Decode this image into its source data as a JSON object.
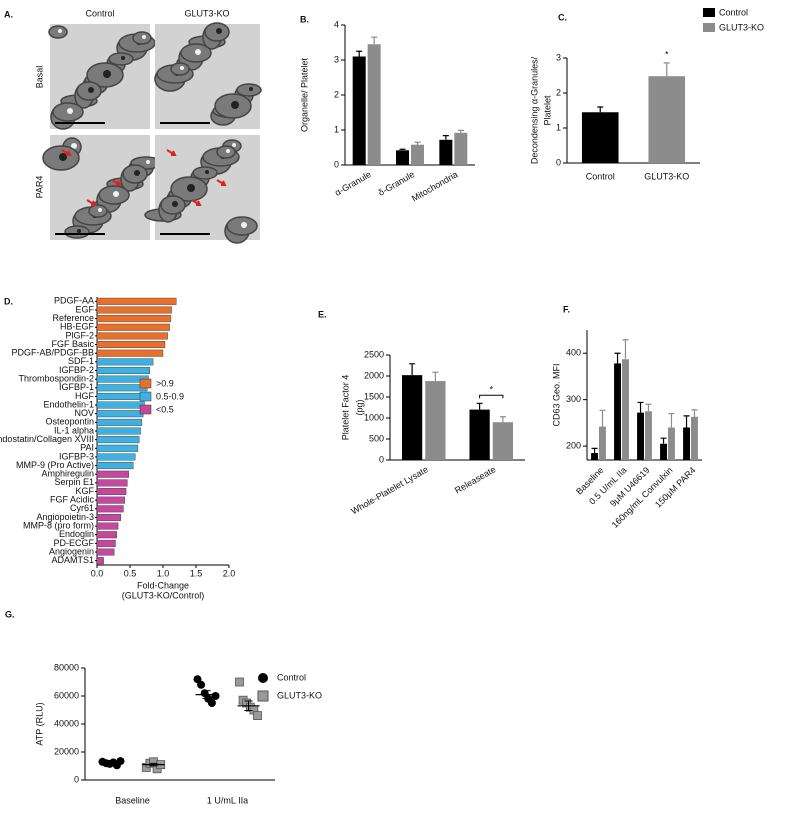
{
  "panel_a": {
    "label": "A.",
    "columns": [
      "Control",
      "GLUT3-KO"
    ],
    "rows": [
      "Basal",
      "PAR4"
    ]
  },
  "chart_data": [
    {
      "type": "bar",
      "panel": "B.",
      "ylabel": "Organelle/ Platelet",
      "categories": [
        "α-Granule",
        "δ-Granule",
        "Mitochondria"
      ],
      "series": [
        {
          "color": "#000000",
          "values": [
            3.1,
            0.42,
            0.72
          ],
          "errors": [
            0.15,
            0.03,
            0.12
          ]
        },
        {
          "color": "#8c8c8c",
          "values": [
            3.45,
            0.58,
            0.92
          ],
          "errors": [
            0.2,
            0.07,
            0.07
          ]
        }
      ],
      "ylim": [
        0,
        4
      ],
      "yticks": [
        0,
        1,
        2,
        3,
        4
      ]
    },
    {
      "type": "bar",
      "panel": "C.",
      "ylabel": [
        "Decondensing α-Granules/",
        "Platelet"
      ],
      "categories": [
        "Control",
        "GLUT3-KO"
      ],
      "values": [
        1.45,
        2.48
      ],
      "errors": [
        0.15,
        0.38
      ],
      "colors": [
        "#000000",
        "#8c8c8c"
      ],
      "ylim": [
        0,
        3
      ],
      "yticks": [
        0,
        1,
        2,
        3
      ],
      "annotations": [
        {
          "text": "*",
          "category": 1
        }
      ],
      "legend": [
        {
          "name": "Control",
          "color": "#000000"
        },
        {
          "name": "GLUT3-KO",
          "color": "#8c8c8c"
        }
      ]
    },
    {
      "type": "hbar",
      "panel": "D.",
      "xlabel": [
        "Fold-Change",
        "(GLUT3-KO/Control)"
      ],
      "xlim": [
        0,
        2
      ],
      "xticks": [
        {
          "value": 0,
          "label": "0.0"
        },
        0.5,
        {
          "value": 1,
          "label": "1.0"
        },
        1.5,
        {
          "value": 2,
          "label": "2.0"
        }
      ],
      "groups": [
        {
          "name": ">0.9",
          "color": "#e8702a",
          "categories": [
            "PDGF-AA",
            "EGF",
            "Reference",
            "HB-EGF",
            "PlGF-2",
            "FGF Basic",
            "PDGF-AB/PDGF-BB"
          ],
          "values": [
            1.2,
            1.13,
            1.12,
            1.1,
            1.07,
            1.03,
            1.0
          ]
        },
        {
          "name": "0.5-0.9",
          "color": "#3fb0e0",
          "categories": [
            "SDF-1",
            "IGFBP-2",
            "Thrombospondin-2",
            "IGFBP-1",
            "HGF",
            "Endothelin-1",
            "NOV",
            "Osteopontin",
            "IL-1 alpha",
            "Endostatin/Collagen XVIII",
            "PAI",
            "IGFBP-3",
            "MMP-9 (Pro Active)"
          ],
          "values": [
            0.85,
            0.8,
            0.78,
            0.76,
            0.74,
            0.72,
            0.7,
            0.68,
            0.66,
            0.64,
            0.62,
            0.58,
            0.55
          ]
        },
        {
          "name": "<0.5",
          "color": "#c4499c",
          "categories": [
            "Amphiregulin",
            "Serpin E1",
            "KGF",
            "FGF Acidic",
            "Cyr61",
            "Angiopoietin-3",
            "MMP-8 (pro form)",
            "Endoglin",
            "PD-ECGF",
            "Angiogenin",
            "ADAMTS1"
          ],
          "values": [
            0.48,
            0.46,
            0.44,
            0.42,
            0.4,
            0.36,
            0.32,
            0.3,
            0.28,
            0.26,
            0.1
          ]
        }
      ]
    },
    {
      "type": "bar",
      "panel": "E.",
      "ylabel": [
        "Platelet Factor 4",
        "(pg)"
      ],
      "categories": [
        "Whole-Platelet Lysate",
        "Releaseate"
      ],
      "series": [
        {
          "color": "#000000",
          "values": [
            2020,
            1200
          ],
          "errors": [
            270,
            150
          ]
        },
        {
          "color": "#8c8c8c",
          "values": [
            1880,
            900
          ],
          "errors": [
            210,
            130
          ]
        }
      ],
      "ylim": [
        0,
        2500
      ],
      "yticks": [
        0,
        500,
        1000,
        1500,
        2000,
        2500
      ],
      "annotations": [
        {
          "text": "*",
          "category": 1,
          "bracket": true
        }
      ]
    },
    {
      "type": "bar",
      "panel": "F.",
      "ylabel": "CD63 Geo. MFI",
      "categories": [
        "Baseline",
        "0.5 U/mL IIa",
        "9μM U46619",
        "160ng/mL Convulxin",
        "150μM PAR4"
      ],
      "series": [
        {
          "color": "#000000",
          "values": [
            185,
            378,
            272,
            205,
            240
          ],
          "errors": [
            10,
            22,
            22,
            12,
            25
          ]
        },
        {
          "color": "#8c8c8c",
          "values": [
            242,
            387,
            275,
            240,
            263
          ],
          "errors": [
            35,
            42,
            15,
            30,
            15
          ]
        }
      ],
      "ylim": [
        170,
        450
      ],
      "yticks": [
        200,
        300,
        400
      ]
    },
    {
      "type": "dot",
      "panel": "G.",
      "ylabel": "ATP (RLU)",
      "categories": [
        "Baseline",
        "1 U/mL IIa"
      ],
      "series": [
        {
          "name": "Control",
          "color": "#000000",
          "marker": "circle",
          "values": [
            [
              13000,
              12000,
              11500,
              12500,
              10500,
              13500
            ],
            [
              72000,
              68000,
              62000,
              58000,
              55000,
              60000
            ]
          ],
          "means": [
            12000,
            61000
          ],
          "sems": [
            500,
            2800
          ]
        },
        {
          "name": "GLUT3-KO",
          "color": "#9a9a9a",
          "marker": "square",
          "values": [
            [
              9000,
              12000,
              13000,
              8000,
              11000
            ],
            [
              70000,
              57000,
              55000,
              52000,
              50000,
              46000
            ]
          ],
          "means": [
            11000,
            53000
          ],
          "sems": [
            900,
            3400
          ]
        }
      ],
      "ylim": [
        0,
        80000
      ],
      "yticks": [
        0,
        20000,
        40000,
        60000,
        80000
      ]
    }
  ]
}
